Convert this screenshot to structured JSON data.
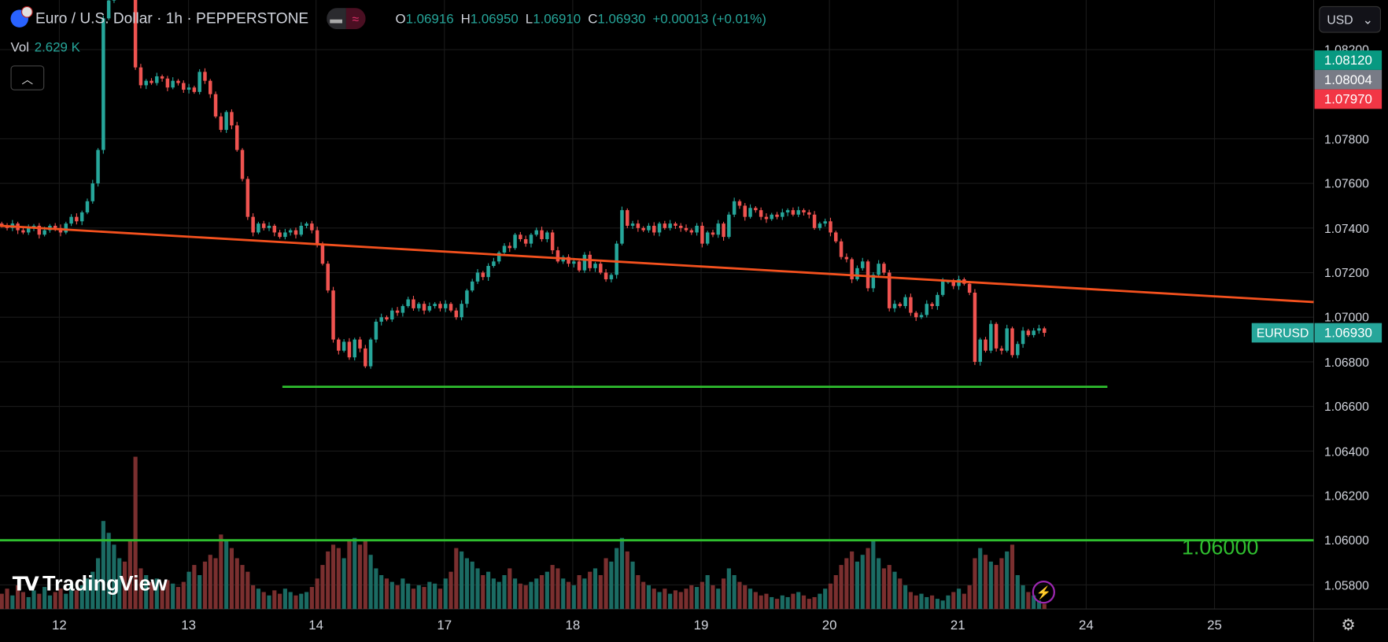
{
  "header": {
    "title": "Euro / U.S. Dollar · 1h · PEPPERSTONE",
    "open_label": "O",
    "open": "1.06916",
    "high_label": "H",
    "high": "1.06950",
    "low_label": "L",
    "low": "1.06910",
    "close_label": "C",
    "close": "1.06930",
    "change": "+0.00013 (+0.01%)",
    "pill_icons": [
      "minus-icon",
      "wave-icon"
    ]
  },
  "volume_legend": {
    "label": "Vol",
    "value": "2.629 K"
  },
  "currency_select": {
    "value": "USD"
  },
  "badges": {
    "ask": "1.08120",
    "mid": "1.08004",
    "bid": "1.07970",
    "symbol": "EURUSD",
    "last": "1.06930"
  },
  "level_label": "1.06000",
  "logo": "TradingView",
  "colors": {
    "up": "#26a69a",
    "down": "#ef5350",
    "trendline": "#f4511e",
    "support": "#2fbf2f",
    "ask": "#089981",
    "mid": "#787b86",
    "bid": "#f23645"
  },
  "chart_data": {
    "type": "candlestick",
    "symbol": "EURUSD",
    "interval": "1h",
    "x_ticks": [
      "12",
      "13",
      "14",
      "17",
      "18",
      "19",
      "20",
      "21",
      "24",
      "25"
    ],
    "y_ticks": [
      "1.08200",
      "1.07800",
      "1.07600",
      "1.07400",
      "1.07200",
      "1.07000",
      "1.06800",
      "1.06600",
      "1.06400",
      "1.06200",
      "1.06000",
      "1.05800"
    ],
    "ylim": [
      1.0574,
      1.0842
    ],
    "close": [
      1.0741,
      1.074,
      1.0742,
      1.0739,
      1.0738,
      1.074,
      1.0741,
      1.0737,
      1.0739,
      1.0741,
      1.074,
      1.0738,
      1.0742,
      1.0745,
      1.0743,
      1.0747,
      1.0752,
      1.076,
      1.0775,
      1.0834,
      1.0842,
      1.0846,
      1.085,
      1.0848,
      1.0845,
      1.0812,
      1.0804,
      1.0806,
      1.0805,
      1.0808,
      1.0807,
      1.0803,
      1.0806,
      1.0805,
      1.0802,
      1.0803,
      1.0801,
      1.081,
      1.0806,
      1.08,
      1.079,
      1.0784,
      1.0792,
      1.0786,
      1.0775,
      1.0762,
      1.0745,
      1.0738,
      1.0742,
      1.074,
      1.0741,
      1.0738,
      1.0736,
      1.0738,
      1.0739,
      1.0737,
      1.0741,
      1.0742,
      1.0739,
      1.0733,
      1.0724,
      1.0712,
      1.069,
      1.0685,
      1.0689,
      1.0682,
      1.069,
      1.0686,
      1.0678,
      1.069,
      1.0698,
      1.07,
      1.0699,
      1.0703,
      1.0702,
      1.0705,
      1.0708,
      1.0704,
      1.0706,
      1.0703,
      1.0705,
      1.0706,
      1.0704,
      1.0706,
      1.0703,
      1.07,
      1.0706,
      1.0712,
      1.0716,
      1.072,
      1.0718,
      1.0723,
      1.0725,
      1.0729,
      1.0732,
      1.0731,
      1.0737,
      1.0735,
      1.0733,
      1.0737,
      1.0739,
      1.0735,
      1.0738,
      1.073,
      1.0725,
      1.0727,
      1.0724,
      1.0725,
      1.0721,
      1.0728,
      1.0722,
      1.0724,
      1.072,
      1.0717,
      1.0719,
      1.0733,
      1.0748,
      1.0741,
      1.0742,
      1.074,
      1.0739,
      1.0741,
      1.0738,
      1.0742,
      1.074,
      1.0742,
      1.0741,
      1.074,
      1.0739,
      1.0738,
      1.0741,
      1.0733,
      1.0738,
      1.0737,
      1.0742,
      1.0736,
      1.0746,
      1.0752,
      1.075,
      1.0745,
      1.0749,
      1.0748,
      1.0745,
      1.0744,
      1.0746,
      1.0745,
      1.0747,
      1.0748,
      1.0746,
      1.0748,
      1.0747,
      1.0746,
      1.074,
      1.0742,
      1.0743,
      1.0738,
      1.0734,
      1.0727,
      1.0726,
      1.0717,
      1.0722,
      1.0725,
      1.0713,
      1.0719,
      1.0724,
      1.072,
      1.0704,
      1.0706,
      1.0705,
      1.0709,
      1.0702,
      1.07,
      1.0701,
      1.0706,
      1.0705,
      1.071,
      1.0716,
      1.0716,
      1.0714,
      1.0717,
      1.0715,
      1.0711,
      1.068,
      1.069,
      1.0685,
      1.0697,
      1.0686,
      1.0685,
      1.0695,
      1.0683,
      1.0688,
      1.0694,
      1.0692,
      1.0694,
      1.0695,
      1.0693
    ],
    "volume_k": [
      9,
      12,
      8,
      14,
      10,
      7,
      11,
      9,
      13,
      8,
      10,
      12,
      9,
      15,
      11,
      14,
      18,
      22,
      30,
      52,
      45,
      38,
      30,
      28,
      40,
      90,
      24,
      20,
      16,
      18,
      14,
      17,
      15,
      13,
      16,
      22,
      26,
      20,
      28,
      32,
      30,
      44,
      40,
      36,
      30,
      26,
      22,
      14,
      12,
      10,
      8,
      11,
      9,
      12,
      10,
      8,
      9,
      10,
      13,
      18,
      26,
      34,
      38,
      36,
      30,
      40,
      42,
      38,
      40,
      32,
      24,
      20,
      18,
      16,
      14,
      18,
      15,
      12,
      14,
      13,
      16,
      15,
      12,
      18,
      22,
      36,
      34,
      30,
      28,
      24,
      20,
      22,
      18,
      16,
      20,
      24,
      18,
      15,
      14,
      16,
      18,
      20,
      22,
      26,
      24,
      18,
      16,
      14,
      20,
      18,
      22,
      24,
      20,
      30,
      28,
      36,
      42,
      34,
      28,
      20,
      16,
      14,
      12,
      10,
      12,
      9,
      11,
      10,
      12,
      14,
      13,
      16,
      20,
      14,
      12,
      18,
      24,
      20,
      16,
      14,
      12,
      10,
      8,
      9,
      7,
      6,
      8,
      7,
      9,
      10,
      8,
      6,
      7,
      9,
      12,
      15,
      20,
      26,
      30,
      34,
      28,
      32,
      36,
      40,
      30,
      24,
      26,
      22,
      18,
      14,
      10,
      8,
      9,
      7,
      8,
      6,
      5,
      8,
      10,
      12,
      9,
      14,
      30,
      36,
      32,
      28,
      26,
      30,
      34,
      38,
      20,
      14,
      10,
      8,
      5,
      3
    ],
    "drawings": {
      "trendline": {
        "start_price": 1.0741,
        "end_price": 1.07068
      },
      "support": {
        "price": 1.06688
      },
      "level": {
        "price": 1.06
      }
    }
  }
}
